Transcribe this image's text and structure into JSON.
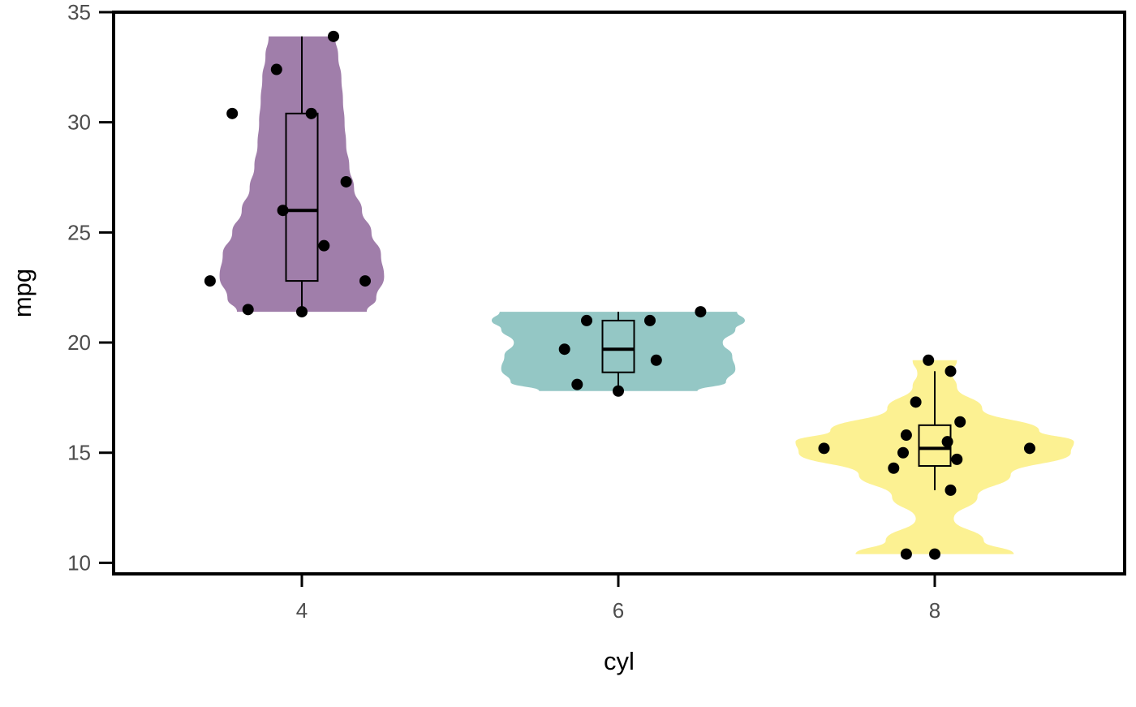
{
  "chart_data": {
    "type": "violin",
    "xlabel": "cyl",
    "ylabel": "mpg",
    "categories": [
      "4",
      "6",
      "8"
    ],
    "ylim": [
      9.5,
      35
    ],
    "y_ticks": [
      10,
      15,
      20,
      25,
      30,
      35
    ],
    "grid": false,
    "legend": "none",
    "colors": {
      "4": "#9b77a5",
      "6": "#8ec4c2",
      "8": "#fcf08c"
    },
    "groups": [
      {
        "category": "4",
        "color": "#9b77a5",
        "violin": {
          "ymin": 21.4,
          "ymax": 33.9,
          "profile": [
            [
              21.4,
              0.41
            ],
            [
              22.0,
              0.47
            ],
            [
              23.0,
              0.52
            ],
            [
              24.0,
              0.5
            ],
            [
              25.0,
              0.44
            ],
            [
              26.0,
              0.38
            ],
            [
              27.0,
              0.33
            ],
            [
              28.0,
              0.3
            ],
            [
              29.0,
              0.28
            ],
            [
              30.0,
              0.27
            ],
            [
              31.0,
              0.26
            ],
            [
              32.0,
              0.25
            ],
            [
              33.0,
              0.23
            ],
            [
              33.9,
              0.21
            ]
          ]
        },
        "box": {
          "lower_whisker": 21.4,
          "q1": 22.8,
          "median": 26.0,
          "q3": 30.4,
          "upper_whisker": 33.9
        },
        "points": [
          [
            -0.29,
            22.8
          ],
          [
            -0.22,
            30.4
          ],
          [
            -0.17,
            21.5
          ],
          [
            -0.08,
            32.4
          ],
          [
            -0.06,
            26.0
          ],
          [
            0.0,
            21.4
          ],
          [
            0.03,
            30.4
          ],
          [
            0.07,
            24.4
          ],
          [
            0.1,
            33.9
          ],
          [
            0.14,
            27.3
          ],
          [
            0.2,
            22.8
          ]
        ]
      },
      {
        "category": "6",
        "color": "#8ec4c2",
        "violin": {
          "ymin": 17.8,
          "ymax": 21.4,
          "profile": [
            [
              17.8,
              0.5
            ],
            [
              18.2,
              0.68
            ],
            [
              18.8,
              0.74
            ],
            [
              19.4,
              0.72
            ],
            [
              20.0,
              0.66
            ],
            [
              20.6,
              0.74
            ],
            [
              21.0,
              0.8
            ],
            [
              21.4,
              0.75
            ]
          ]
        },
        "box": {
          "lower_whisker": 17.8,
          "q1": 18.65,
          "median": 19.7,
          "q3": 21.0,
          "upper_whisker": 21.4
        },
        "points": [
          [
            -0.17,
            19.7
          ],
          [
            -0.13,
            18.1
          ],
          [
            -0.1,
            21.0
          ],
          [
            0.0,
            17.8
          ],
          [
            0.1,
            21.0
          ],
          [
            0.12,
            19.2
          ],
          [
            0.26,
            21.4
          ]
        ]
      },
      {
        "category": "8",
        "color": "#fcf08c",
        "violin": {
          "ymin": 10.4,
          "ymax": 19.2,
          "profile": [
            [
              10.4,
              0.5
            ],
            [
              11.0,
              0.31
            ],
            [
              12.0,
              0.12
            ],
            [
              13.0,
              0.27
            ],
            [
              14.0,
              0.48
            ],
            [
              15.0,
              0.86
            ],
            [
              15.5,
              0.88
            ],
            [
              16.0,
              0.66
            ],
            [
              17.0,
              0.3
            ],
            [
              18.0,
              0.14
            ],
            [
              18.6,
              0.11
            ],
            [
              19.2,
              0.14
            ]
          ]
        },
        "box": {
          "lower_whisker": 13.3,
          "q1": 14.4,
          "median": 15.2,
          "q3": 16.25,
          "upper_whisker": 18.7
        },
        "points": [
          [
            -0.35,
            15.2
          ],
          [
            -0.13,
            14.3
          ],
          [
            -0.1,
            15.0
          ],
          [
            -0.09,
            15.8
          ],
          [
            -0.09,
            10.4
          ],
          [
            -0.06,
            17.3
          ],
          [
            -0.02,
            19.2
          ],
          [
            0.0,
            10.4
          ],
          [
            0.04,
            15.5
          ],
          [
            0.05,
            18.7
          ],
          [
            0.05,
            13.3
          ],
          [
            0.07,
            14.7
          ],
          [
            0.08,
            16.4
          ],
          [
            0.3,
            15.2
          ]
        ]
      }
    ]
  }
}
